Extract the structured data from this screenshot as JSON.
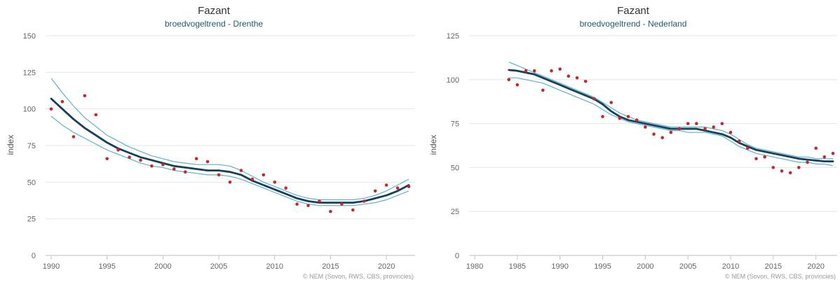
{
  "colors": {
    "trend": "#163f5c",
    "band": "#5bb1cf",
    "points": "#c62828"
  },
  "chart_data": [
    {
      "type": "line",
      "title": "Fazant",
      "subtitle": "broedvogeltrend - Drenthe",
      "ylabel": "index",
      "credit": "© NEM (Sovon, RWS, CBS, provincies)",
      "xlim": [
        1990,
        2022
      ],
      "ylim": [
        0,
        150
      ],
      "xticks": [
        1990,
        1995,
        2000,
        2005,
        2010,
        2015,
        2020
      ],
      "yticks": [
        0,
        25,
        50,
        75,
        100,
        125,
        150
      ],
      "grid": true,
      "series": [
        {
          "role": "upper",
          "x": [
            1990,
            1991,
            1992,
            1993,
            1994,
            1995,
            1996,
            1997,
            1998,
            1999,
            2000,
            2001,
            2002,
            2003,
            2004,
            2005,
            2006,
            2007,
            2008,
            2009,
            2010,
            2011,
            2012,
            2013,
            2014,
            2015,
            2016,
            2017,
            2018,
            2019,
            2020,
            2021,
            2022
          ],
          "values": [
            121,
            111,
            102,
            94,
            88,
            82,
            78,
            74,
            71,
            68,
            66,
            64,
            63,
            62,
            62,
            62,
            61,
            58,
            54,
            50,
            47,
            44,
            41,
            39,
            38,
            38,
            38,
            38,
            39,
            41,
            44,
            48,
            52
          ]
        },
        {
          "role": "trend",
          "x": [
            1990,
            1991,
            1992,
            1993,
            1994,
            1995,
            1996,
            1997,
            1998,
            1999,
            2000,
            2001,
            2002,
            2003,
            2004,
            2005,
            2006,
            2007,
            2008,
            2009,
            2010,
            2011,
            2012,
            2013,
            2014,
            2015,
            2016,
            2017,
            2018,
            2019,
            2020,
            2021,
            2022
          ],
          "values": [
            107,
            100,
            93,
            87,
            82,
            77,
            73,
            70,
            67,
            65,
            63,
            61,
            60,
            59,
            58,
            58,
            57,
            55,
            51,
            48,
            45,
            42,
            39,
            37,
            36,
            36,
            36,
            36,
            37,
            39,
            41,
            44,
            48
          ]
        },
        {
          "role": "lower",
          "x": [
            1990,
            1991,
            1992,
            1993,
            1994,
            1995,
            1996,
            1997,
            1998,
            1999,
            2000,
            2001,
            2002,
            2003,
            2004,
            2005,
            2006,
            2007,
            2008,
            2009,
            2010,
            2011,
            2012,
            2013,
            2014,
            2015,
            2016,
            2017,
            2018,
            2019,
            2020,
            2021,
            2022
          ],
          "values": [
            95,
            89,
            84,
            80,
            76,
            72,
            69,
            66,
            63,
            61,
            60,
            58,
            57,
            56,
            55,
            55,
            54,
            52,
            49,
            46,
            43,
            40,
            37,
            35,
            34,
            34,
            34,
            34,
            35,
            36,
            38,
            41,
            44
          ]
        },
        {
          "role": "observed",
          "x": [
            1990,
            1991,
            1992,
            1993,
            1994,
            1995,
            1996,
            1997,
            1998,
            1999,
            2000,
            2001,
            2002,
            2003,
            2004,
            2005,
            2006,
            2007,
            2008,
            2009,
            2010,
            2011,
            2012,
            2013,
            2014,
            2015,
            2016,
            2017,
            2018,
            2019,
            2020,
            2021,
            2022
          ],
          "values": [
            100,
            105,
            81,
            109,
            96,
            66,
            72,
            67,
            65,
            61,
            62,
            59,
            57,
            66,
            64,
            55,
            50,
            58,
            52,
            55,
            50,
            46,
            35,
            34,
            37,
            30,
            35,
            31,
            37,
            44,
            48,
            46,
            47
          ]
        }
      ]
    },
    {
      "type": "line",
      "title": "Fazant",
      "subtitle": "broedvogeltrend - Nederland",
      "ylabel": "index",
      "credit": "© NEM (Sovon, RWS, CBS, provincies)",
      "xlim": [
        1980,
        2022
      ],
      "ylim": [
        0,
        125
      ],
      "xticks": [
        1980,
        1985,
        1990,
        1995,
        2000,
        2005,
        2010,
        2015,
        2020
      ],
      "yticks": [
        0,
        25,
        50,
        75,
        100,
        125
      ],
      "grid": true,
      "series": [
        {
          "role": "upper",
          "x": [
            1984,
            1985,
            1986,
            1987,
            1988,
            1989,
            1990,
            1991,
            1992,
            1993,
            1994,
            1995,
            1996,
            1997,
            1998,
            1999,
            2000,
            2001,
            2002,
            2003,
            2004,
            2005,
            2006,
            2007,
            2008,
            2009,
            2010,
            2011,
            2012,
            2013,
            2014,
            2015,
            2016,
            2017,
            2018,
            2019,
            2020,
            2021,
            2022
          ],
          "values": [
            110,
            108,
            106,
            104,
            102,
            100,
            98,
            96,
            94,
            92,
            90,
            87,
            84,
            81,
            79,
            77,
            76,
            75,
            74,
            73,
            73,
            73,
            73,
            73,
            72,
            71,
            69,
            66,
            63,
            61,
            60,
            59,
            58,
            57,
            56,
            56,
            55,
            55,
            55
          ]
        },
        {
          "role": "trend",
          "x": [
            1984,
            1985,
            1986,
            1987,
            1988,
            1989,
            1990,
            1991,
            1992,
            1993,
            1994,
            1995,
            1996,
            1997,
            1998,
            1999,
            2000,
            2001,
            2002,
            2003,
            2004,
            2005,
            2006,
            2007,
            2008,
            2009,
            2010,
            2011,
            2012,
            2013,
            2014,
            2015,
            2016,
            2017,
            2018,
            2019,
            2020,
            2021,
            2022
          ],
          "values": [
            105.5,
            105,
            104,
            103,
            101,
            99,
            97,
            95,
            93,
            91,
            89,
            86,
            82,
            79,
            77,
            76,
            75,
            74,
            73,
            72,
            72,
            72,
            72,
            71,
            70,
            69,
            67,
            64,
            62,
            60,
            59,
            58,
            57,
            56,
            55,
            54.5,
            54,
            53.5,
            53.5
          ]
        },
        {
          "role": "lower",
          "x": [
            1984,
            1985,
            1986,
            1987,
            1988,
            1989,
            1990,
            1991,
            1992,
            1993,
            1994,
            1995,
            1996,
            1997,
            1998,
            1999,
            2000,
            2001,
            2002,
            2003,
            2004,
            2005,
            2006,
            2007,
            2008,
            2009,
            2010,
            2011,
            2012,
            2013,
            2014,
            2015,
            2016,
            2017,
            2018,
            2019,
            2020,
            2021,
            2022
          ],
          "values": [
            101,
            101,
            100,
            99,
            98,
            96,
            94,
            92,
            90,
            88,
            86,
            83,
            80,
            78,
            76,
            75,
            74,
            73,
            72,
            71,
            71,
            70,
            70,
            70,
            69,
            68,
            65,
            62,
            60,
            58,
            57,
            56,
            55,
            54,
            53,
            53,
            52,
            52,
            51
          ]
        },
        {
          "role": "observed",
          "x": [
            1984,
            1985,
            1986,
            1987,
            1988,
            1989,
            1990,
            1991,
            1992,
            1993,
            1994,
            1995,
            1996,
            1997,
            1998,
            1999,
            2000,
            2001,
            2002,
            2003,
            2004,
            2005,
            2006,
            2007,
            2008,
            2009,
            2010,
            2011,
            2012,
            2013,
            2014,
            2015,
            2016,
            2017,
            2018,
            2019,
            2020,
            2021,
            2022
          ],
          "values": [
            100,
            97,
            105,
            105,
            94,
            105,
            106,
            102,
            101,
            99,
            89,
            79,
            87,
            78,
            79,
            77,
            73,
            69,
            67,
            70,
            72,
            75,
            75,
            72,
            73,
            75,
            70,
            65,
            61,
            55,
            56,
            50,
            48,
            47,
            50,
            53,
            61,
            56,
            58
          ]
        }
      ]
    }
  ]
}
